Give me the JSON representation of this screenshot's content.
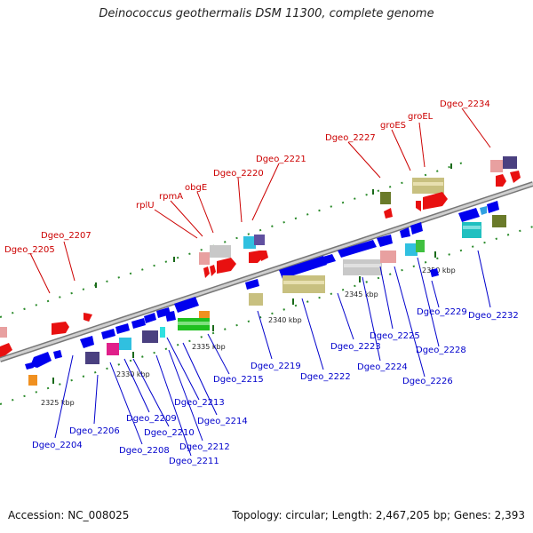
{
  "title": "Deinococcus geothermalis DSM 11300, complete genome",
  "footer": {
    "accession": "Accession: NC_008025",
    "topology": "Topology: circular; Length: 2,467,205 bp; Genes: 2,393"
  },
  "scale_labels": [
    "2325 kbp",
    "2330 kbp",
    "2335 kbp",
    "2340 kbp",
    "2345 kbp",
    "2350 kbp"
  ],
  "genes_top": [
    "Dgeo_2205",
    "Dgeo_2207",
    "rplU",
    "rpmA",
    "obgE",
    "Dgeo_2220",
    "Dgeo_2221",
    "Dgeo_2227",
    "groES",
    "groEL",
    "Dgeo_2234"
  ],
  "genes_bottom": [
    "Dgeo_2204",
    "Dgeo_2206",
    "Dgeo_2208",
    "Dgeo_2209",
    "Dgeo_2210",
    "Dgeo_2211",
    "Dgeo_2212",
    "Dgeo_2213",
    "Dgeo_2214",
    "Dgeo_2215",
    "Dgeo_2219",
    "Dgeo_2222",
    "Dgeo_2223",
    "Dgeo_2224",
    "Dgeo_2225",
    "Dgeo_2226",
    "Dgeo_2228",
    "Dgeo_2229",
    "Dgeo_2232"
  ],
  "colors": {
    "forward_label": "#cc0000",
    "reverse_label": "#0000cc",
    "backbone": "#999999"
  }
}
